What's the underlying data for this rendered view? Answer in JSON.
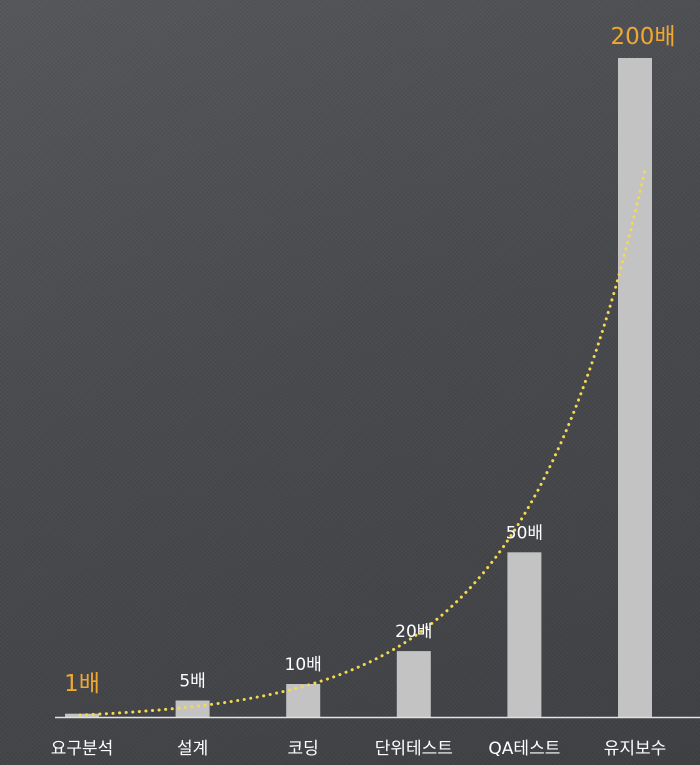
{
  "chart_data": {
    "type": "bar",
    "categories": [
      "요구분석",
      "설계",
      "코딩",
      "단위테스트",
      "QA테스트",
      "유지보수"
    ],
    "values": [
      1,
      5,
      10,
      20,
      50,
      200
    ],
    "value_labels": [
      "1배",
      "5배",
      "10배",
      "20배",
      "50배",
      "200배"
    ],
    "highlighted": [
      0,
      5
    ],
    "title": "",
    "xlabel": "",
    "ylabel": "",
    "ylim": [
      0,
      200
    ],
    "grid": false,
    "legend": "none",
    "trendline": "exponential, dotted",
    "colors": {
      "bar": "#c3c3c3",
      "highlight_text": "#f0a830",
      "trendline": "#f5d94e",
      "text": "#ffffff",
      "background": "#484a4e"
    }
  }
}
